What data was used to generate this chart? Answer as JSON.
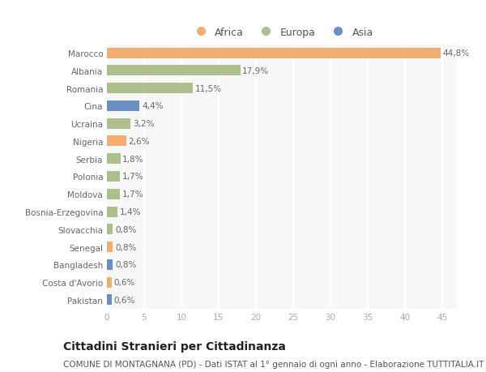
{
  "countries": [
    "Marocco",
    "Albania",
    "Romania",
    "Cina",
    "Ucraina",
    "Nigeria",
    "Serbia",
    "Polonia",
    "Moldova",
    "Bosnia-Erzegovina",
    "Slovacchia",
    "Senegal",
    "Bangladesh",
    "Costa d'Avorio",
    "Pakistan"
  ],
  "values": [
    44.8,
    17.9,
    11.5,
    4.4,
    3.2,
    2.6,
    1.8,
    1.7,
    1.7,
    1.4,
    0.8,
    0.8,
    0.8,
    0.6,
    0.6
  ],
  "labels": [
    "44,8%",
    "17,9%",
    "11,5%",
    "4,4%",
    "3,2%",
    "2,6%",
    "1,8%",
    "1,7%",
    "1,7%",
    "1,4%",
    "0,8%",
    "0,8%",
    "0,8%",
    "0,6%",
    "0,6%"
  ],
  "continents": [
    "Africa",
    "Europa",
    "Europa",
    "Asia",
    "Europa",
    "Africa",
    "Europa",
    "Europa",
    "Europa",
    "Europa",
    "Europa",
    "Africa",
    "Asia",
    "Africa",
    "Asia"
  ],
  "colors": {
    "Africa": "#F2AE72",
    "Europa": "#ADBF8C",
    "Asia": "#6B8FC0"
  },
  "legend_items": [
    "Africa",
    "Europa",
    "Asia"
  ],
  "title": "Cittadini Stranieri per Cittadinanza",
  "subtitle": "COMUNE DI MONTAGNANA (PD) - Dati ISTAT al 1° gennaio di ogni anno - Elaborazione TUTTITALIA.IT",
  "xlim": [
    0,
    47
  ],
  "xticks": [
    0,
    5,
    10,
    15,
    20,
    25,
    30,
    35,
    40,
    45
  ],
  "bg_color": "#ffffff",
  "plot_bg_color": "#f7f7f7",
  "grid_color": "#ffffff",
  "bar_height": 0.6,
  "title_fontsize": 10,
  "subtitle_fontsize": 7.5,
  "label_fontsize": 7.5,
  "tick_fontsize": 7.5,
  "legend_fontsize": 9
}
